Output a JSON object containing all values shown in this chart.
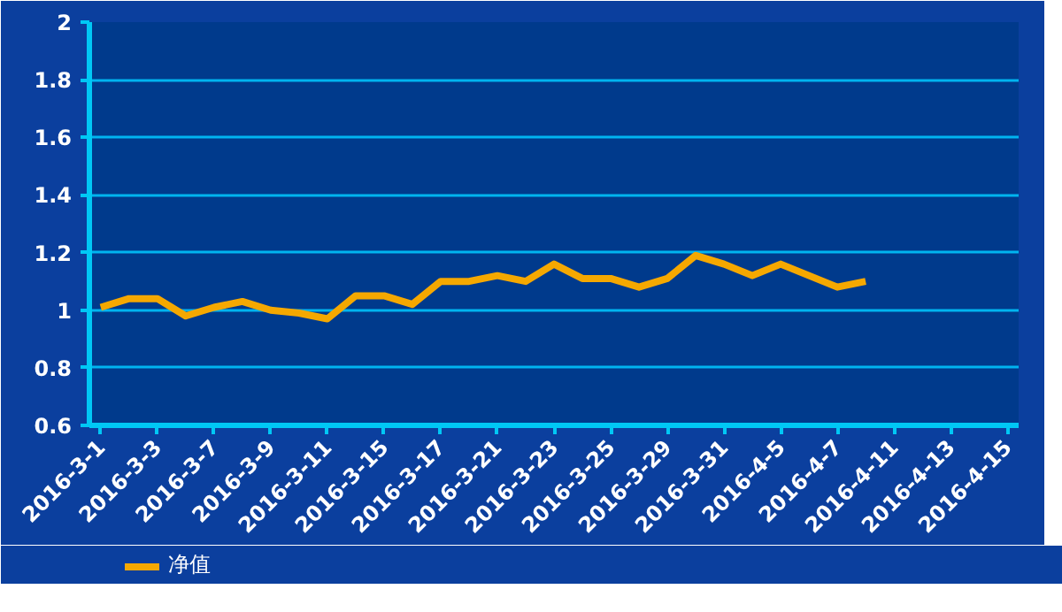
{
  "chart_data": {
    "type": "line",
    "categories": [
      "2016-3-1",
      null,
      "2016-3-3",
      null,
      "2016-3-7",
      null,
      "2016-3-9",
      null,
      "2016-3-11",
      null,
      "2016-3-15",
      null,
      "2016-3-17",
      null,
      "2016-3-21",
      null,
      "2016-3-23",
      null,
      "2016-3-25",
      null,
      "2016-3-29",
      null,
      "2016-3-31",
      null,
      "2016-4-5",
      null,
      "2016-4-7",
      null,
      "2016-4-11",
      null,
      "2016-4-13",
      null,
      "2016-4-15"
    ],
    "series": [
      {
        "name": "净值",
        "color": "#f5a800",
        "values": [
          1.01,
          1.04,
          1.04,
          0.98,
          1.01,
          1.03,
          1.0,
          0.99,
          0.97,
          1.05,
          1.05,
          1.02,
          1.1,
          1.1,
          1.12,
          1.1,
          1.16,
          1.11,
          1.11,
          1.08,
          1.11,
          1.19,
          1.16,
          1.12,
          1.16,
          1.12,
          1.08,
          1.1,
          null,
          null,
          null,
          null,
          null
        ]
      }
    ],
    "ylim": [
      0.6,
      2
    ],
    "yticks": [
      0.6,
      0.8,
      1,
      1.2,
      1.4,
      1.6,
      1.8,
      2
    ],
    "grid": "y",
    "legend": "bottom left",
    "marker": "none",
    "line_style": "solid"
  }
}
